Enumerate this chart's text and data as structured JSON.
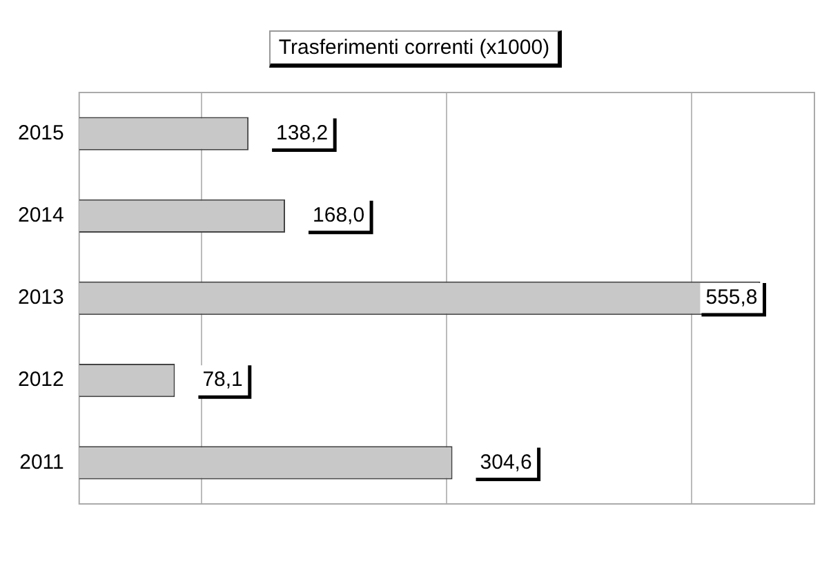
{
  "chart_data": {
    "type": "bar",
    "orientation": "horizontal",
    "title": "Trasferimenti correnti (x1000)",
    "categories": [
      "2015",
      "2014",
      "2013",
      "2012",
      "2011"
    ],
    "values": [
      138.2,
      168.0,
      555.8,
      78.1,
      304.6
    ],
    "value_labels": [
      "138,2",
      "168,0",
      "555,8",
      "78,1",
      "304,6"
    ],
    "color": "#c8c8c8",
    "xlim": [
      0,
      600
    ],
    "xticks": [
      {
        "value": 100,
        "label": null
      },
      {
        "value": 300,
        "label": null
      },
      {
        "value": 500,
        "label": null
      }
    ],
    "tick_labels": "y",
    "grid": "x",
    "legend": false
  }
}
